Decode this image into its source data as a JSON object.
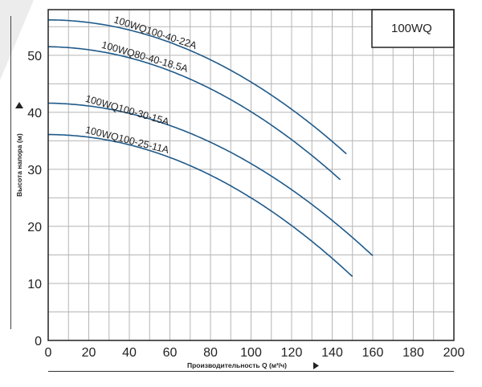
{
  "chart_data": {
    "type": "line",
    "model": "100WQ",
    "xlabel": "Производительность Q (м³/ч)",
    "ylabel": "Высота напора (м)",
    "xlim": [
      0,
      200
    ],
    "ylim": [
      0,
      58
    ],
    "x_ticks": [
      "0",
      "20",
      "40",
      "60",
      "80",
      "100",
      "120",
      "140",
      "160",
      "180",
      "200"
    ],
    "y_ticks": [
      "0",
      "10",
      "20",
      "30",
      "40",
      "50"
    ],
    "grid": true,
    "colors": {
      "series": "#1f5a8a",
      "grid": "#b5b5b5",
      "frame": "#222222"
    },
    "series": [
      {
        "name": "100WQ100-40-22A",
        "q_max": 147,
        "a": 56.2,
        "b": 0.001,
        "c": 0.00108
      },
      {
        "name": "100WQ80-40-18.5A",
        "q_max": 144,
        "a": 51.5,
        "b": 0.005,
        "c": 0.00109
      },
      {
        "name": "100WQ100-30-15A",
        "q_max": 160,
        "a": 41.6,
        "b": 0.004,
        "c": 0.00102
      },
      {
        "name": "100WQ100-25-11A",
        "q_max": 150,
        "a": 36.1,
        "b": 0.001,
        "c": 0.0011
      }
    ]
  }
}
